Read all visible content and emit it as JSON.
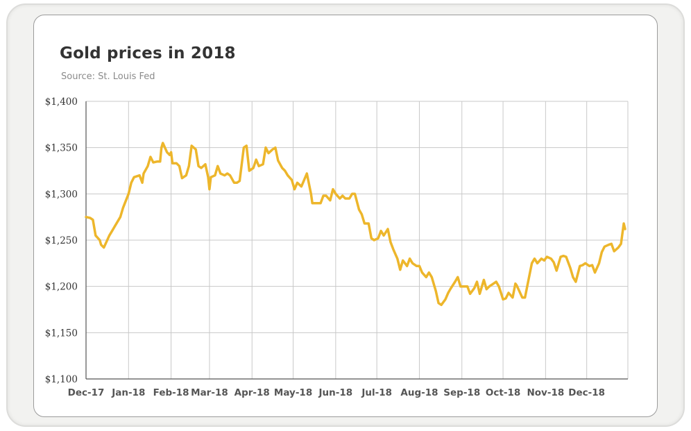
{
  "title": "Gold prices in 2018",
  "subtitle": "Source: St. Louis Fed",
  "colors": {
    "line": "#EDB62B",
    "grid": "#c8c8c8",
    "axis": "#555555"
  },
  "chart_data": {
    "type": "line",
    "title": "Gold prices in 2018",
    "subtitle": "Source: St. Louis Fed",
    "xlabel": "",
    "ylabel": "",
    "ylim": [
      1100,
      1400
    ],
    "yticks": [
      1100,
      1150,
      1200,
      1250,
      1300,
      1350,
      1400
    ],
    "ytick_labels": [
      "$1,100",
      "$1,150",
      "$1,200",
      "$1,250",
      "$1,300",
      "$1,350",
      "$1,400"
    ],
    "xlim": [
      "2017-12-01",
      "2018-12-31"
    ],
    "xticks": [
      "2017-12-01",
      "2018-01-01",
      "2018-02-01",
      "2018-03-01",
      "2018-04-01",
      "2018-05-01",
      "2018-06-01",
      "2018-07-01",
      "2018-08-01",
      "2018-09-01",
      "2018-10-01",
      "2018-11-01",
      "2018-12-01"
    ],
    "xtick_labels": [
      "Dec-17",
      "Jan-18",
      "Feb-18",
      "Mar-18",
      "Apr-18",
      "May-18",
      "Jun-18",
      "Jul-18",
      "Aug-18",
      "Sep-18",
      "Oct-18",
      "Nov-18",
      "Dec-18"
    ],
    "grid": true,
    "legend": "none",
    "series": [
      {
        "x": [
          "2017-12-01",
          "2017-12-04",
          "2017-12-06",
          "2017-12-08",
          "2017-12-11",
          "2017-12-12",
          "2017-12-14",
          "2017-12-18",
          "2017-12-20",
          "2017-12-22",
          "2017-12-26",
          "2017-12-28",
          "2018-01-01",
          "2018-01-03",
          "2018-01-05",
          "2018-01-09",
          "2018-01-11",
          "2018-01-12",
          "2018-01-15",
          "2018-01-17",
          "2018-01-19",
          "2018-01-22",
          "2018-01-24",
          "2018-01-25",
          "2018-01-26",
          "2018-01-29",
          "2018-01-31",
          "2018-02-01",
          "2018-02-02",
          "2018-02-05",
          "2018-02-07",
          "2018-02-09",
          "2018-02-12",
          "2018-02-14",
          "2018-02-16",
          "2018-02-19",
          "2018-02-21",
          "2018-02-23",
          "2018-02-26",
          "2018-02-28",
          "2018-03-01",
          "2018-03-02",
          "2018-03-05",
          "2018-03-07",
          "2018-03-09",
          "2018-03-12",
          "2018-03-14",
          "2018-03-16",
          "2018-03-19",
          "2018-03-21",
          "2018-03-23",
          "2018-03-26",
          "2018-03-28",
          "2018-03-30",
          "2018-04-02",
          "2018-04-04",
          "2018-04-06",
          "2018-04-09",
          "2018-04-11",
          "2018-04-13",
          "2018-04-16",
          "2018-04-18",
          "2018-04-20",
          "2018-04-23",
          "2018-04-25",
          "2018-04-27",
          "2018-04-30",
          "2018-05-02",
          "2018-05-04",
          "2018-05-07",
          "2018-05-09",
          "2018-05-11",
          "2018-05-14",
          "2018-05-15",
          "2018-05-18",
          "2018-05-21",
          "2018-05-23",
          "2018-05-25",
          "2018-05-28",
          "2018-05-30",
          "2018-06-01",
          "2018-06-04",
          "2018-06-06",
          "2018-06-08",
          "2018-06-11",
          "2018-06-13",
          "2018-06-15",
          "2018-06-18",
          "2018-06-20",
          "2018-06-22",
          "2018-06-25",
          "2018-06-27",
          "2018-06-29",
          "2018-07-02",
          "2018-07-04",
          "2018-07-06",
          "2018-07-09",
          "2018-07-11",
          "2018-07-13",
          "2018-07-16",
          "2018-07-18",
          "2018-07-20",
          "2018-07-23",
          "2018-07-25",
          "2018-07-27",
          "2018-07-30",
          "2018-08-01",
          "2018-08-03",
          "2018-08-06",
          "2018-08-08",
          "2018-08-10",
          "2018-08-13",
          "2018-08-15",
          "2018-08-17",
          "2018-08-20",
          "2018-08-22",
          "2018-08-24",
          "2018-08-27",
          "2018-08-29",
          "2018-08-31",
          "2018-09-03",
          "2018-09-05",
          "2018-09-07",
          "2018-09-10",
          "2018-09-12",
          "2018-09-14",
          "2018-09-17",
          "2018-09-19",
          "2018-09-21",
          "2018-09-24",
          "2018-09-26",
          "2018-09-28",
          "2018-10-01",
          "2018-10-03",
          "2018-10-05",
          "2018-10-08",
          "2018-10-10",
          "2018-10-11",
          "2018-10-15",
          "2018-10-17",
          "2018-10-19",
          "2018-10-22",
          "2018-10-24",
          "2018-10-26",
          "2018-10-29",
          "2018-10-31",
          "2018-11-02",
          "2018-11-05",
          "2018-11-07",
          "2018-11-09",
          "2018-11-12",
          "2018-11-14",
          "2018-11-16",
          "2018-11-19",
          "2018-11-21",
          "2018-11-23",
          "2018-11-26",
          "2018-11-28",
          "2018-11-30",
          "2018-12-03",
          "2018-12-05",
          "2018-12-07",
          "2018-12-10",
          "2018-12-12",
          "2018-12-14",
          "2018-12-17",
          "2018-12-19",
          "2018-12-21",
          "2018-12-24",
          "2018-12-26",
          "2018-12-28",
          "2018-12-29"
        ],
        "values": [
          1275,
          1274,
          1272,
          1255,
          1250,
          1245,
          1242,
          1255,
          1260,
          1265,
          1275,
          1285,
          1300,
          1312,
          1318,
          1320,
          1312,
          1322,
          1330,
          1340,
          1334,
          1335,
          1335,
          1350,
          1355,
          1345,
          1342,
          1345,
          1333,
          1333,
          1330,
          1317,
          1320,
          1330,
          1352,
          1348,
          1330,
          1328,
          1332,
          1318,
          1305,
          1318,
          1320,
          1330,
          1322,
          1320,
          1322,
          1320,
          1312,
          1312,
          1314,
          1350,
          1352,
          1325,
          1328,
          1337,
          1330,
          1332,
          1350,
          1344,
          1348,
          1350,
          1336,
          1328,
          1325,
          1320,
          1315,
          1305,
          1312,
          1308,
          1315,
          1322,
          1300,
          1290,
          1290,
          1290,
          1298,
          1298,
          1293,
          1305,
          1300,
          1295,
          1298,
          1295,
          1295,
          1300,
          1300,
          1283,
          1278,
          1268,
          1268,
          1252,
          1250,
          1252,
          1260,
          1255,
          1262,
          1248,
          1240,
          1230,
          1218,
          1228,
          1222,
          1230,
          1225,
          1222,
          1222,
          1215,
          1210,
          1215,
          1210,
          1195,
          1182,
          1180,
          1186,
          1193,
          1198,
          1205,
          1210,
          1200,
          1200,
          1200,
          1192,
          1198,
          1205,
          1192,
          1207,
          1197,
          1200,
          1203,
          1205,
          1200,
          1186,
          1187,
          1193,
          1188,
          1203,
          1201,
          1188,
          1188,
          1203,
          1225,
          1230,
          1225,
          1230,
          1228,
          1232,
          1230,
          1226,
          1217,
          1232,
          1233,
          1232,
          1220,
          1210,
          1205,
          1222,
          1223,
          1225,
          1222,
          1223,
          1215,
          1225,
          1237,
          1243,
          1245,
          1246,
          1238,
          1242,
          1246,
          1268,
          1262
        ]
      }
    ]
  }
}
